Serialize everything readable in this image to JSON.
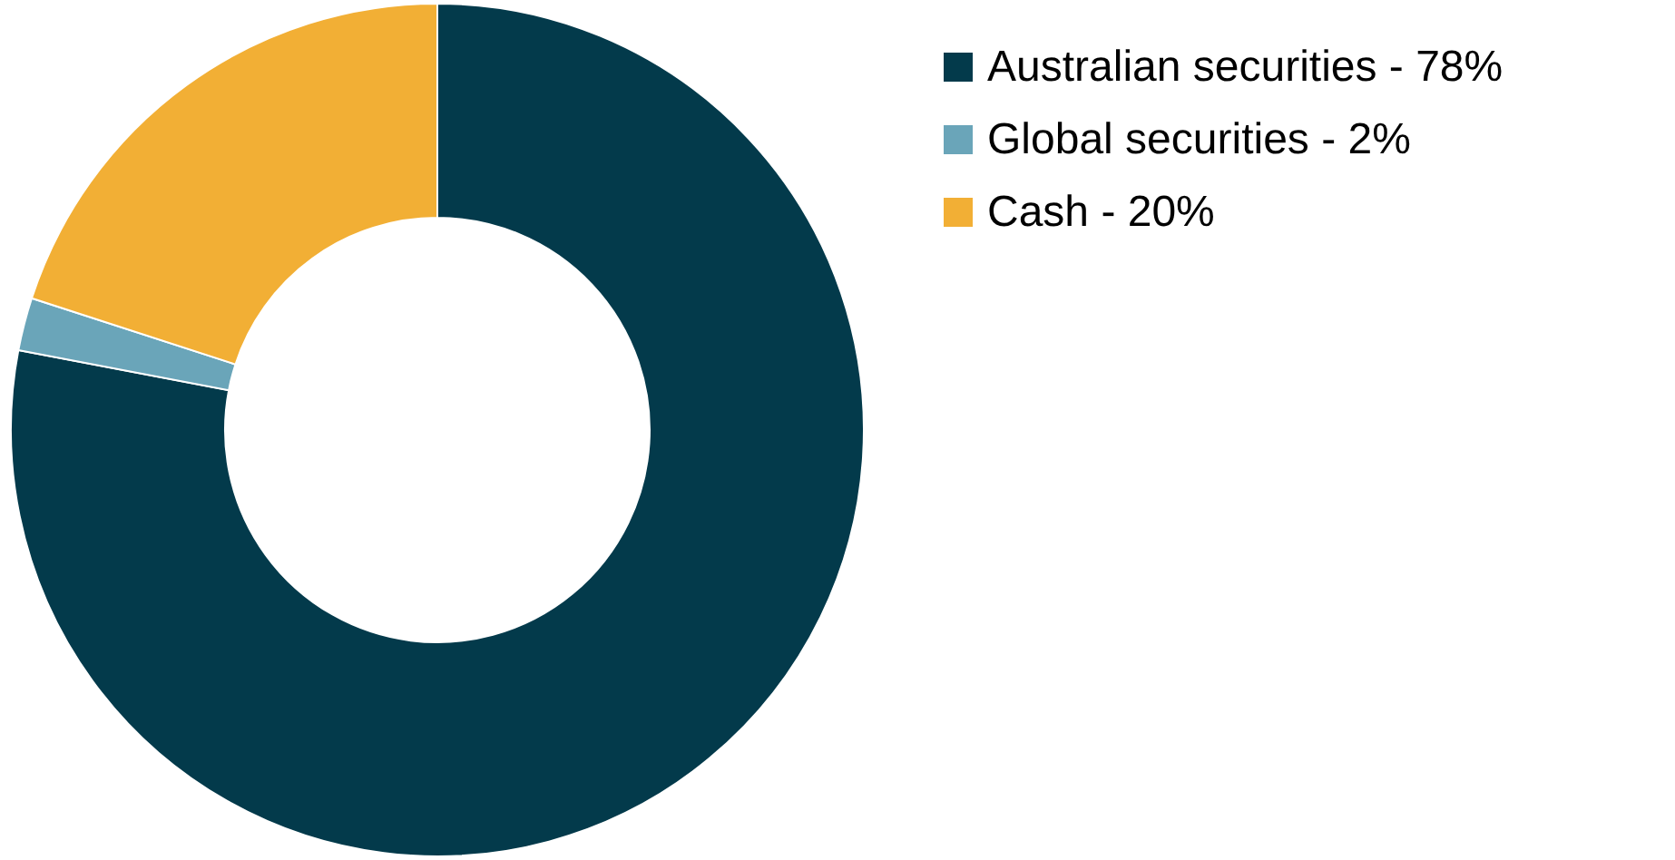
{
  "chart_data": {
    "type": "donut",
    "categories": [
      "Australian securities - 78%",
      "Global securities - 2%",
      "Cash - 20%"
    ],
    "values": [
      78,
      2,
      20
    ],
    "colors": [
      "#033a4b",
      "#6aa5b9",
      "#f2af35"
    ],
    "legend": "top right"
  }
}
